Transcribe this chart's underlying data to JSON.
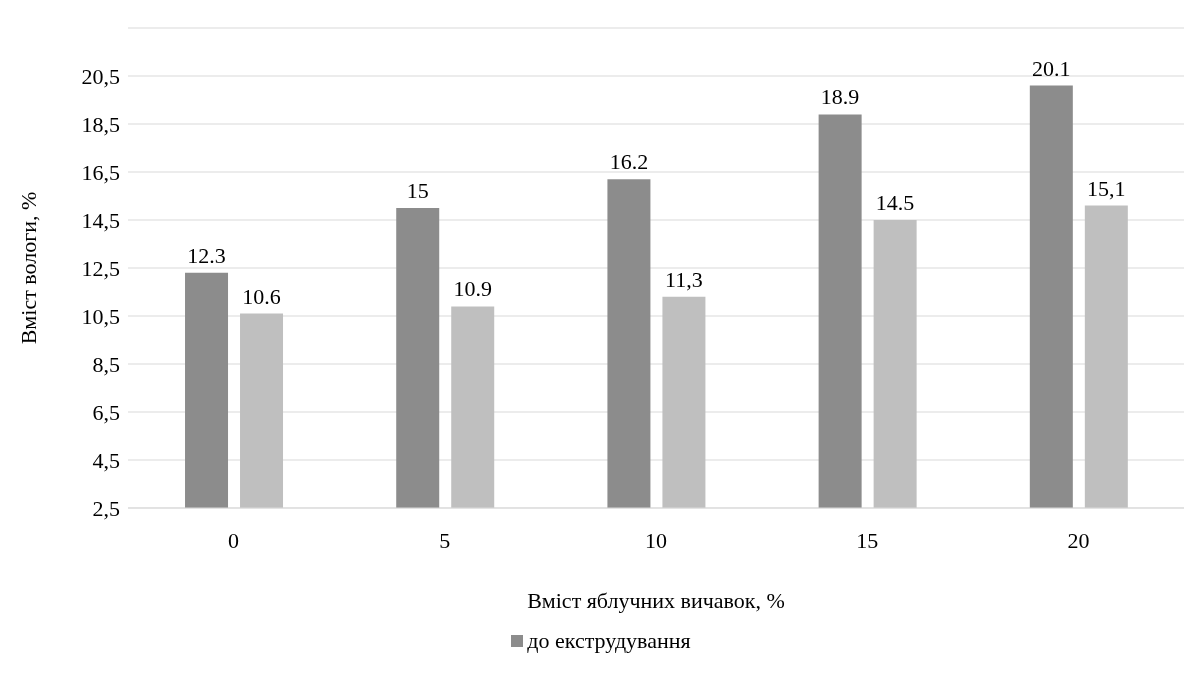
{
  "chart_data": {
    "type": "bar",
    "categories": [
      "0",
      "5",
      "10",
      "15",
      "20"
    ],
    "series": [
      {
        "name": "до екструдування",
        "color": "#8c8c8c",
        "values": [
          12.3,
          15,
          16.2,
          18.9,
          20.1
        ],
        "value_labels": [
          "12.3",
          "15",
          "16.2",
          "18.9",
          "20.1"
        ]
      },
      {
        "color": "#bfbfbf",
        "values": [
          10.6,
          10.9,
          11.3,
          14.5,
          15.1
        ],
        "value_labels": [
          "10.6",
          "10.9",
          "11,3",
          "14.5",
          "15,1"
        ]
      }
    ],
    "ylim": [
      2.5,
      22.5
    ],
    "yticks": [
      {
        "value": 2.5,
        "label": "2,5"
      },
      {
        "value": 4.5,
        "label": "4,5"
      },
      {
        "value": 6.5,
        "label": "6,5"
      },
      {
        "value": 8.5,
        "label": "8,5"
      },
      {
        "value": 10.5,
        "label": "10,5"
      },
      {
        "value": 12.5,
        "label": "12,5"
      },
      {
        "value": 14.5,
        "label": "14,5"
      },
      {
        "value": 16.5,
        "label": "16,5"
      },
      {
        "value": 18.5,
        "label": "18,5"
      },
      {
        "value": 20.5,
        "label": "20,5"
      }
    ],
    "xlabel": "Вміст яблучних вичавок, %",
    "ylabel": "Вміст вологи, %",
    "grid": "y",
    "legend": "bottom"
  }
}
